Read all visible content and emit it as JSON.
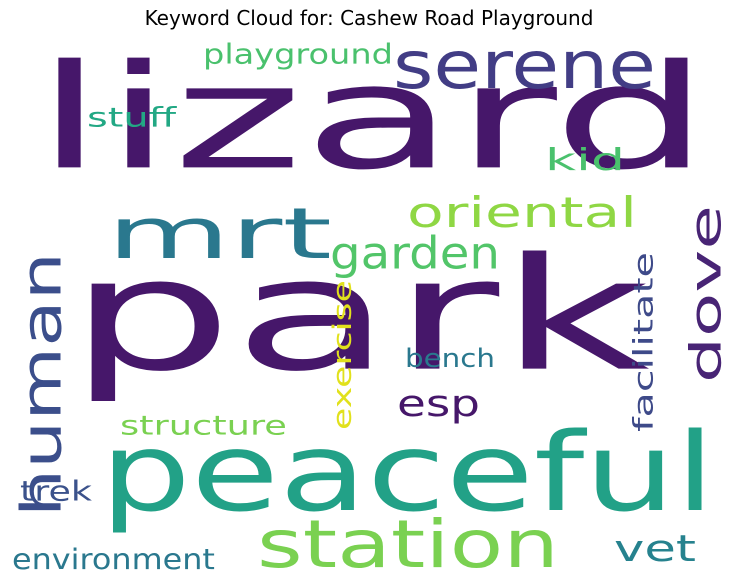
{
  "title": "Keyword Cloud for: Cashew Road Playground",
  "words": [
    {
      "text": "park",
      "color": "#46176a"
    },
    {
      "text": "lizard",
      "color": "#46176a"
    },
    {
      "text": "peaceful",
      "color": "#22a187"
    },
    {
      "text": "mrt",
      "color": "#2a788e"
    },
    {
      "text": "serene",
      "color": "#423d85"
    },
    {
      "text": "station",
      "color": "#7ad151"
    },
    {
      "text": "human",
      "color": "#3b4e8b"
    },
    {
      "text": "dove",
      "color": "#482475"
    },
    {
      "text": "oriental",
      "color": "#8fd744"
    },
    {
      "text": "garden",
      "color": "#52c569"
    },
    {
      "text": "vet",
      "color": "#26828e"
    },
    {
      "text": "esp",
      "color": "#46176a"
    },
    {
      "text": "playground",
      "color": "#4ac16d"
    },
    {
      "text": "facilitate",
      "color": "#3e4a89"
    },
    {
      "text": "exercise",
      "color": "#e1e11c"
    },
    {
      "text": "environment",
      "color": "#2a788e"
    },
    {
      "text": "structure",
      "color": "#7ad151"
    },
    {
      "text": "bench",
      "color": "#2a788e"
    },
    {
      "text": "stuff",
      "color": "#22a884"
    },
    {
      "text": "kid",
      "color": "#4ac16d"
    },
    {
      "text": "trek",
      "color": "#3b528b"
    }
  ]
}
